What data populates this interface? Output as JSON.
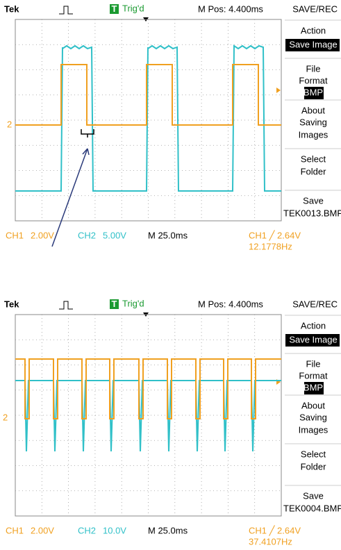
{
  "screens": [
    {
      "header": {
        "brand": "Tek",
        "trigger_icon": "T",
        "trigger_status": "Trig'd",
        "m_pos": "M Pos: 4.400ms",
        "menu_title": "SAVE/REC"
      },
      "menu": [
        [
          "Action",
          "Save Image"
        ],
        [
          "File",
          "Format",
          "BMP"
        ],
        [
          "About",
          "Saving",
          "Images"
        ],
        [
          "Select",
          "Folder"
        ],
        [
          "Save",
          "TEK0013.BMP"
        ]
      ],
      "marker": "2",
      "footer": {
        "ch1": "CH1",
        "ch1_scale": "2.00V",
        "ch2": "CH2",
        "ch2_scale": "5.00V",
        "timebase": "M 25.0ms",
        "trigger": "CH1 ╱ 2.64V",
        "frequency": "12.1778Hz"
      }
    },
    {
      "header": {
        "brand": "Tek",
        "trigger_icon": "T",
        "trigger_status": "Trig'd",
        "m_pos": "M Pos: 4.400ms",
        "menu_title": "SAVE/REC"
      },
      "menu": [
        [
          "Action",
          "Save Image"
        ],
        [
          "File",
          "Format",
          "BMP"
        ],
        [
          "About",
          "Saving",
          "Images"
        ],
        [
          "Select",
          "Folder"
        ],
        [
          "Save",
          "TEK0004.BMP"
        ]
      ],
      "marker": "2",
      "footer": {
        "ch1": "CH1",
        "ch1_scale": "2.00V",
        "ch2": "CH2",
        "ch2_scale": "10.0V",
        "timebase": "M 25.0ms",
        "trigger": "CH1 ╱ 2.64V",
        "frequency": "37.4107Hz"
      }
    }
  ]
}
